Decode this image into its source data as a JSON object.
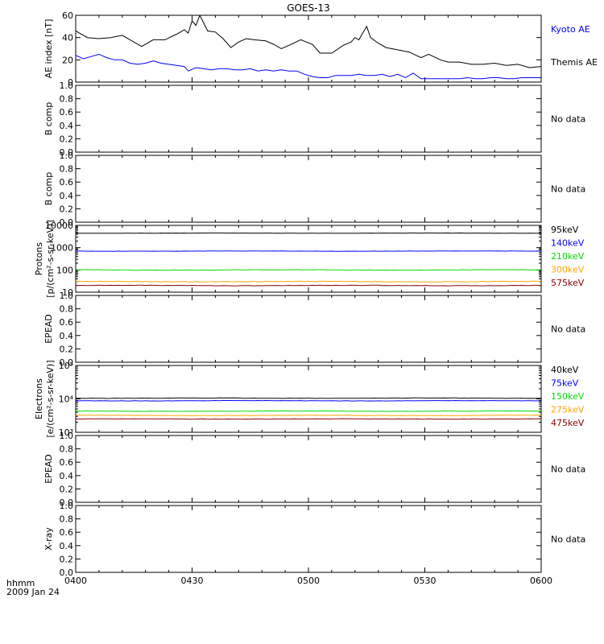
{
  "title": "GOES-13",
  "footer": {
    "time_label": "hhmm",
    "date_label": "2009 Jan 24"
  },
  "chart_data": [
    {
      "type": "line",
      "panel": "ae",
      "ylabel": "AE index [nT]",
      "ylim": [
        0,
        60
      ],
      "yticks": [
        "0",
        "20",
        "40",
        "60"
      ],
      "scale": "linear",
      "series": [
        {
          "name": "Themis AE",
          "color": "#000000",
          "points": [
            [
              0,
              46
            ],
            [
              3,
              40
            ],
            [
              6,
              39
            ],
            [
              9,
              40
            ],
            [
              12,
              42
            ],
            [
              14,
              38
            ],
            [
              17,
              32
            ],
            [
              20,
              38
            ],
            [
              23,
              38
            ],
            [
              26,
              43
            ],
            [
              28,
              47
            ],
            [
              29,
              44
            ],
            [
              30,
              55
            ],
            [
              31,
              51
            ],
            [
              32,
              60
            ],
            [
              34,
              46
            ],
            [
              36,
              45
            ],
            [
              38,
              39
            ],
            [
              40,
              31
            ],
            [
              42,
              36
            ],
            [
              44,
              39
            ],
            [
              46,
              38
            ],
            [
              49,
              37
            ],
            [
              51,
              34
            ],
            [
              53,
              30
            ],
            [
              55,
              33
            ],
            [
              58,
              38
            ],
            [
              61,
              34
            ],
            [
              63,
              26
            ],
            [
              66,
              26
            ],
            [
              69,
              33
            ],
            [
              71,
              36
            ],
            [
              72,
              40
            ],
            [
              73,
              38
            ],
            [
              74,
              44
            ],
            [
              75,
              50
            ],
            [
              76,
              40
            ],
            [
              78,
              35
            ],
            [
              80,
              31
            ],
            [
              83,
              29
            ],
            [
              86,
              27
            ],
            [
              89,
              22
            ],
            [
              91,
              25
            ],
            [
              94,
              20
            ],
            [
              96,
              18
            ],
            [
              99,
              18
            ],
            [
              102,
              16
            ],
            [
              105,
              16
            ],
            [
              108,
              17
            ],
            [
              111,
              15
            ],
            [
              114,
              16
            ],
            [
              117,
              13
            ],
            [
              120,
              14
            ]
          ]
        },
        {
          "name": "Kyoto AE",
          "color": "#0000ff",
          "points": [
            [
              0,
              24
            ],
            [
              2,
              21
            ],
            [
              4,
              23
            ],
            [
              6,
              25
            ],
            [
              8,
              22
            ],
            [
              10,
              20
            ],
            [
              12,
              20
            ],
            [
              14,
              17
            ],
            [
              16,
              16
            ],
            [
              18,
              17
            ],
            [
              20,
              19
            ],
            [
              22,
              17
            ],
            [
              24,
              16
            ],
            [
              26,
              15
            ],
            [
              28,
              14
            ],
            [
              29,
              10
            ],
            [
              31,
              13
            ],
            [
              33,
              12
            ],
            [
              35,
              11
            ],
            [
              37,
              12
            ],
            [
              39,
              12
            ],
            [
              41,
              11
            ],
            [
              43,
              11
            ],
            [
              45,
              12
            ],
            [
              47,
              10
            ],
            [
              49,
              11
            ],
            [
              51,
              10
            ],
            [
              53,
              11
            ],
            [
              55,
              10
            ],
            [
              57,
              10
            ],
            [
              59,
              7
            ],
            [
              61,
              5
            ],
            [
              63,
              4
            ],
            [
              65,
              4
            ],
            [
              67,
              6
            ],
            [
              69,
              6
            ],
            [
              71,
              6
            ],
            [
              73,
              7
            ],
            [
              75,
              6
            ],
            [
              77,
              6
            ],
            [
              79,
              7
            ],
            [
              81,
              5
            ],
            [
              83,
              7
            ],
            [
              85,
              4
            ],
            [
              87,
              8
            ],
            [
              89,
              3
            ],
            [
              91,
              3
            ],
            [
              93,
              3
            ],
            [
              95,
              3
            ],
            [
              97,
              3
            ],
            [
              99,
              3
            ],
            [
              101,
              4
            ],
            [
              103,
              3
            ],
            [
              105,
              3
            ],
            [
              107,
              4
            ],
            [
              109,
              4
            ],
            [
              111,
              3
            ],
            [
              113,
              3
            ],
            [
              115,
              4
            ],
            [
              117,
              4
            ],
            [
              120,
              4
            ]
          ]
        }
      ]
    },
    {
      "type": "line",
      "panel": "bcomp1",
      "ylabel": "B comp",
      "ylim": [
        0,
        1
      ],
      "yticks": [
        "0.0",
        "0.2",
        "0.4",
        "0.6",
        "0.8",
        "1.0"
      ],
      "scale": "linear",
      "status": "No data",
      "series": []
    },
    {
      "type": "line",
      "panel": "bcomp2",
      "ylabel": "B comp",
      "ylim": [
        0,
        1
      ],
      "yticks": [
        "0.0",
        "0.2",
        "0.4",
        "0.6",
        "0.8",
        "1.0"
      ],
      "scale": "linear",
      "status": "No data",
      "series": []
    },
    {
      "type": "line",
      "panel": "protons",
      "ylabel": "Protons",
      "ylabel_unit": "[p/(cm²-s-sr-keV)]",
      "ylim": [
        10,
        10000
      ],
      "yticks": [
        "10",
        "100",
        "1000",
        "10000"
      ],
      "scale": "log",
      "series": [
        {
          "name": "575keV",
          "color": "#8b0000",
          "level": 20,
          "noise": 0.02
        },
        {
          "name": "300keV",
          "color": "#ffa500",
          "level": 30,
          "noise": 0.03
        },
        {
          "name": "210keV",
          "color": "#00dd00",
          "level": 100,
          "noise": 0.02
        },
        {
          "name": "140keV",
          "color": "#0000ff",
          "level": 700,
          "noise": 0.01
        },
        {
          "name": "95keV",
          "color": "#000000",
          "level": 4500,
          "noise": 0.01
        }
      ]
    },
    {
      "type": "line",
      "panel": "epead1",
      "ylabel": "EPEAD",
      "ylim": [
        0,
        1
      ],
      "yticks": [
        "0.0",
        "0.2",
        "0.4",
        "0.6",
        "0.8",
        "1.0"
      ],
      "scale": "linear",
      "status": "No data",
      "series": []
    },
    {
      "type": "line",
      "panel": "electrons",
      "ylabel": "Electrons",
      "ylabel_unit": "[e/(cm²-s-sr-keV)]",
      "ylim": [
        1000,
        100000
      ],
      "yticks": [
        "10³",
        "10⁴",
        "10⁵"
      ],
      "scale": "log",
      "series": [
        {
          "name": "475keV",
          "color": "#8b0000",
          "level": 2500,
          "noise": 0.01
        },
        {
          "name": "275keV",
          "color": "#ffa500",
          "level": 3200,
          "noise": 0.01
        },
        {
          "name": "150keV",
          "color": "#00dd00",
          "level": 4300,
          "noise": 0.01
        },
        {
          "name": "75keV",
          "color": "#0000ff",
          "level": 8800,
          "noise": 0.01
        },
        {
          "name": "40keV",
          "color": "#000000",
          "level": 10500,
          "noise": 0.01
        }
      ]
    },
    {
      "type": "line",
      "panel": "epead2",
      "ylabel": "EPEAD",
      "ylim": [
        0,
        1
      ],
      "yticks": [
        "0.0",
        "0.2",
        "0.4",
        "0.6",
        "0.8",
        "1.0"
      ],
      "scale": "linear",
      "status": "No data",
      "series": []
    },
    {
      "type": "line",
      "panel": "xray",
      "ylabel": "X-ray",
      "ylim": [
        0,
        1
      ],
      "yticks": [
        "0.0",
        "0.2",
        "0.4",
        "0.6",
        "0.8",
        "1.0"
      ],
      "scale": "linear",
      "status": "No data",
      "series": []
    }
  ],
  "x_axis": {
    "xlim": [
      0,
      120
    ],
    "ticks": [
      {
        "value": 0,
        "label": "0400"
      },
      {
        "value": 30,
        "label": "0430"
      },
      {
        "value": 60,
        "label": "0500"
      },
      {
        "value": 90,
        "label": "0530"
      },
      {
        "value": 120,
        "label": "0600"
      }
    ]
  }
}
